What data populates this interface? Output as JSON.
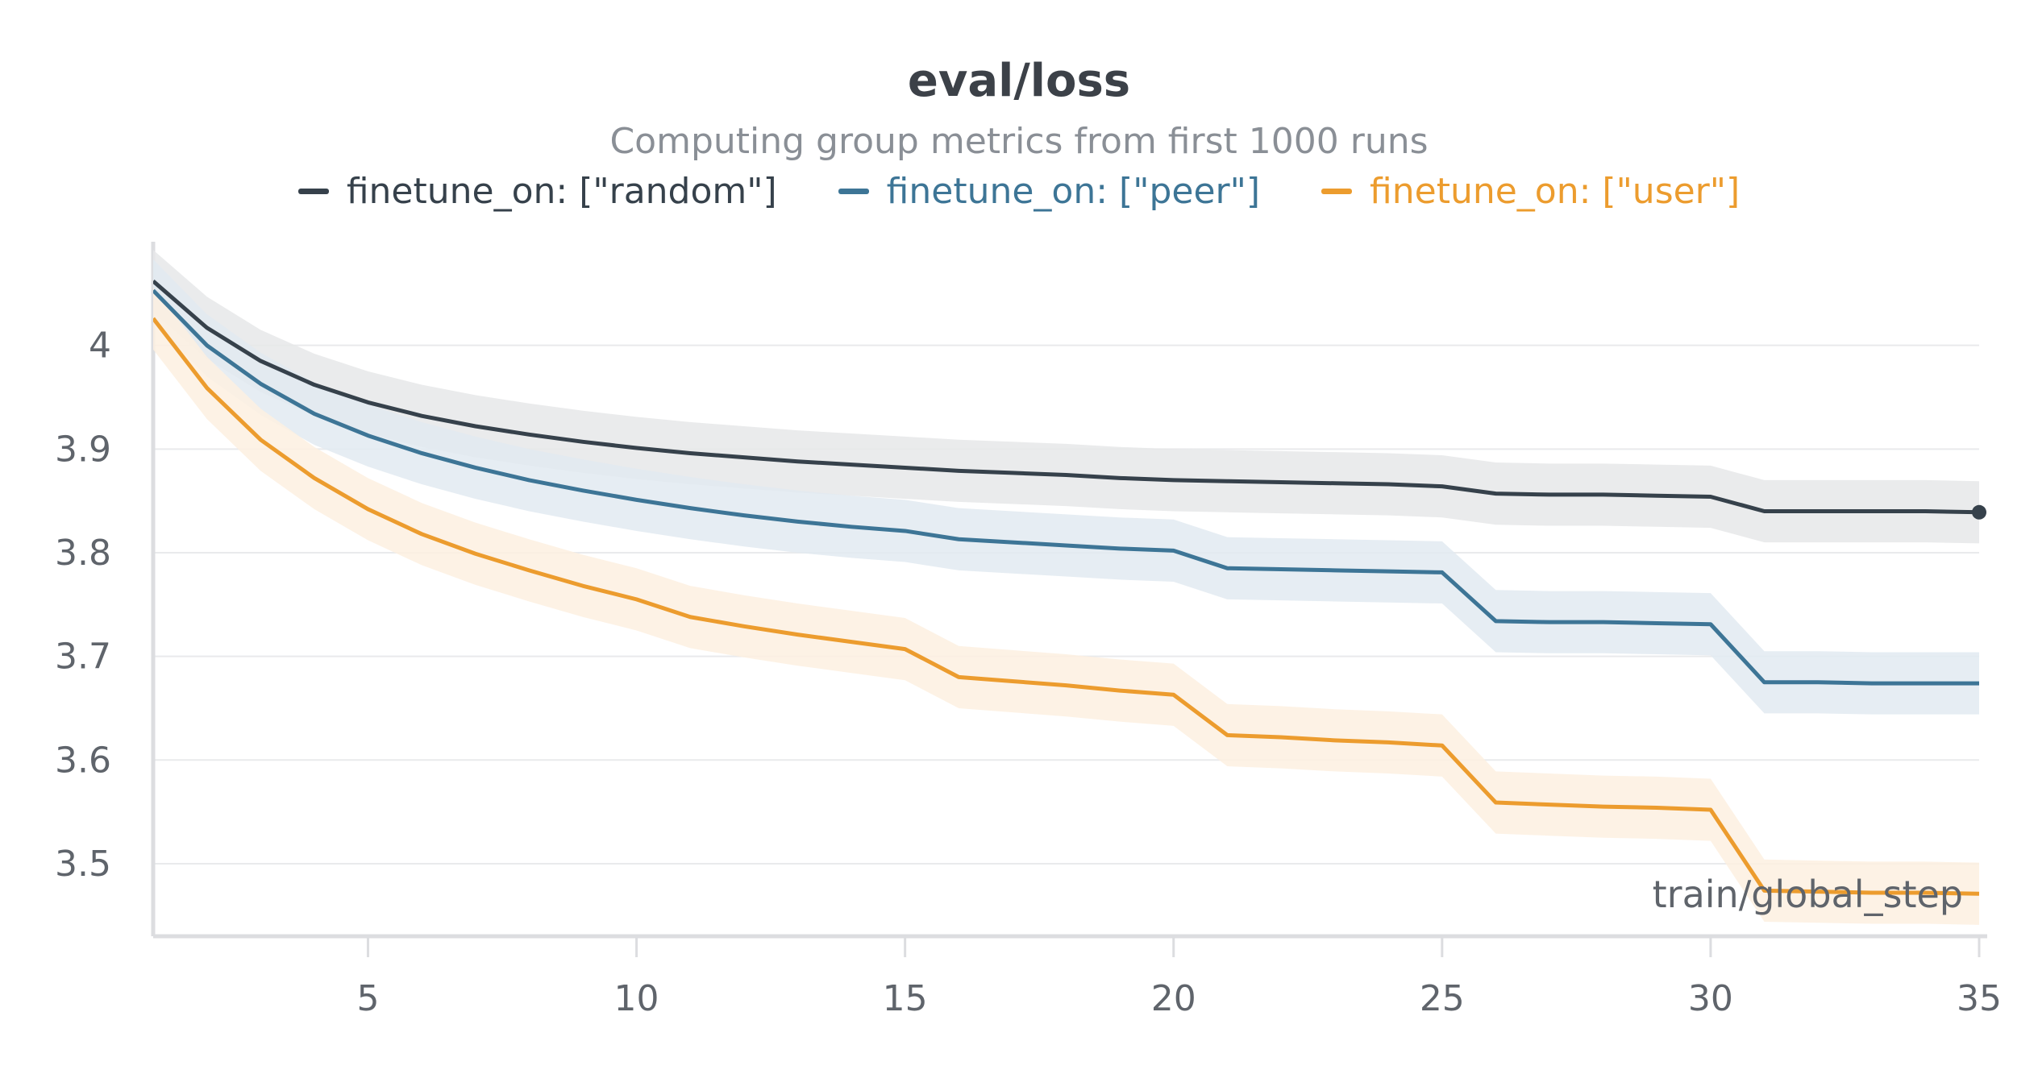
{
  "chart_data": {
    "type": "line",
    "title": "eval/loss",
    "subtitle": "Computing group metrics from first 1000 runs",
    "xlabel": "train/global_step",
    "ylabel": "",
    "xlim": [
      1,
      35
    ],
    "ylim": [
      3.43,
      4.1
    ],
    "x_ticks": [
      5,
      10,
      15,
      20,
      25,
      30,
      35
    ],
    "y_ticks": [
      3.5,
      3.6,
      3.7,
      3.8,
      3.9,
      4
    ],
    "y_tick_labels": [
      "3.5",
      "3.6",
      "3.7",
      "3.8",
      "3.9",
      "4"
    ],
    "grid": true,
    "legend_position": "top-center",
    "x": [
      1,
      2,
      3,
      4,
      5,
      6,
      7,
      8,
      9,
      10,
      11,
      12,
      13,
      14,
      15,
      16,
      17,
      18,
      19,
      20,
      21,
      22,
      23,
      24,
      25,
      26,
      27,
      28,
      29,
      30,
      31,
      32,
      33,
      34,
      35
    ],
    "series": [
      {
        "name": "finetune_on: [\"random\"]",
        "color": "#36414b",
        "band_color": "#e6e7e9",
        "band": 0.03,
        "values": [
          4.062,
          4.017,
          3.985,
          3.962,
          3.945,
          3.932,
          3.922,
          3.914,
          3.907,
          3.901,
          3.896,
          3.892,
          3.888,
          3.885,
          3.882,
          3.879,
          3.877,
          3.875,
          3.872,
          3.87,
          3.869,
          3.868,
          3.867,
          3.866,
          3.864,
          3.857,
          3.856,
          3.856,
          3.855,
          3.854,
          3.84,
          3.84,
          3.84,
          3.84,
          3.839
        ]
      },
      {
        "name": "finetune_on: [\"peer\"]",
        "color": "#3d7596",
        "band_color": "#e2eaf1",
        "band": 0.03,
        "values": [
          4.053,
          4.0,
          3.963,
          3.934,
          3.913,
          3.896,
          3.882,
          3.87,
          3.86,
          3.851,
          3.843,
          3.836,
          3.83,
          3.825,
          3.821,
          3.813,
          3.81,
          3.807,
          3.804,
          3.802,
          3.785,
          3.784,
          3.783,
          3.782,
          3.781,
          3.734,
          3.733,
          3.733,
          3.732,
          3.731,
          3.675,
          3.675,
          3.674,
          3.674,
          3.674
        ]
      },
      {
        "name": "finetune_on: [\"user\"]",
        "color": "#ec9c2e",
        "band_color": "#fdf0e1",
        "band": 0.03,
        "values": [
          4.026,
          3.959,
          3.909,
          3.872,
          3.842,
          3.818,
          3.799,
          3.783,
          3.768,
          3.755,
          3.738,
          3.729,
          3.721,
          3.714,
          3.707,
          3.68,
          3.676,
          3.672,
          3.667,
          3.663,
          3.624,
          3.622,
          3.619,
          3.617,
          3.614,
          3.559,
          3.557,
          3.555,
          3.554,
          3.552,
          3.474,
          3.473,
          3.472,
          3.472,
          3.471
        ]
      }
    ]
  }
}
